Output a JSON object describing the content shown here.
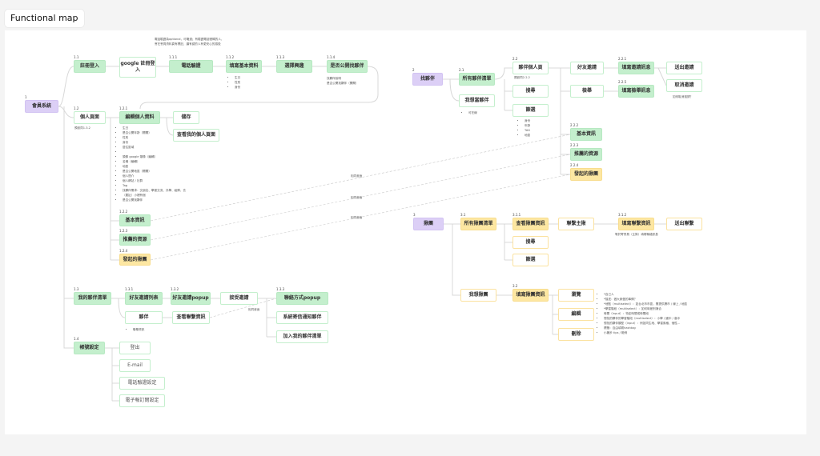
{
  "title": "Functional map",
  "nodes": {
    "n1": {
      "num": "1",
      "label": "會員系統"
    },
    "n11": {
      "num": "1.1",
      "label": "註冊登入"
    },
    "ngoogle": {
      "num": "",
      "label": "google 註冊登入"
    },
    "n111": {
      "num": "1.1.1",
      "label": "電話驗證"
    },
    "n112": {
      "num": "1.1.2",
      "label": "填寫基本資料"
    },
    "n113": {
      "num": "1.1.3",
      "label": "選擇興趣"
    },
    "n114": {
      "num": "1.1.4",
      "label": "是否公開找夥伴"
    },
    "n12": {
      "num": "1.2",
      "label": "個人頁面"
    },
    "n121": {
      "num": "1.2.1",
      "label": "編輯個人資料"
    },
    "nsave": {
      "num": "",
      "label": "儲存"
    },
    "nview": {
      "num": "",
      "label": "查看我的個人頁面"
    },
    "n122": {
      "num": "1.2.2",
      "label": "基本資訊"
    },
    "n123": {
      "num": "1.2.3",
      "label": "推薦的資源"
    },
    "n124": {
      "num": "1.2.4",
      "label": "發起的揪團"
    },
    "n13": {
      "num": "1.3",
      "label": "我的夥伴清單"
    },
    "n131": {
      "num": "1.3.1",
      "label": "好友邀請列表"
    },
    "n132": {
      "num": "1.3.2",
      "label": "好友邀請popup"
    },
    "naccept": {
      "num": "",
      "label": "接受邀請"
    },
    "n133": {
      "num": "1.3.3",
      "label": "聯絡方式popup"
    },
    "nmail": {
      "num": "",
      "label": "系統寄信通知夥伴"
    },
    "nadd": {
      "num": "",
      "label": "加入我的夥伴清單"
    },
    "npartner": {
      "num": "",
      "label": "夥伴"
    },
    "ncontact": {
      "num": "",
      "label": "查看聯繫資訊"
    },
    "n14": {
      "num": "1.4",
      "label": "帳號設定"
    },
    "nlogout": {
      "num": "",
      "label": "登出"
    },
    "nemail": {
      "num": "",
      "label": "E-mail"
    },
    "nphone": {
      "num": "",
      "label": "電話驗證設定"
    },
    "nnews": {
      "num": "",
      "label": "電子報訂閱設定"
    },
    "n2": {
      "num": "2",
      "label": "找夥伴"
    },
    "n21": {
      "num": "2.1",
      "label": "所有夥伴清單"
    },
    "nbe": {
      "num": "",
      "label": "我想當夥伴"
    },
    "n22": {
      "num": "2.2",
      "label": "夥伴個人頁"
    },
    "nsearch2": {
      "num": "",
      "label": "搜尋"
    },
    "nfilter2": {
      "num": "",
      "label": "篩選"
    },
    "nfriend": {
      "num": "",
      "label": "好友邀請"
    },
    "nreport": {
      "num": "",
      "label": "檢舉"
    },
    "n221": {
      "num": "2.2.1",
      "label": "填寫邀請訊息"
    },
    "n225": {
      "num": "2.2.5",
      "label": "填寫檢舉訊息"
    },
    "nsend": {
      "num": "",
      "label": "送出邀請"
    },
    "ncancel": {
      "num": "",
      "label": "取消邀請"
    },
    "n222": {
      "num": "2.2.2",
      "label": "基本資訊"
    },
    "n223": {
      "num": "2.2.3",
      "label": "推薦的資源"
    },
    "n224": {
      "num": "2.2.4",
      "label": "發起的揪團"
    },
    "n3": {
      "num": "3",
      "label": "揪團"
    },
    "n31": {
      "num": "3.1",
      "label": "所有揪團清單"
    },
    "n311": {
      "num": "3.1.1",
      "label": "查看揪團資訊"
    },
    "nsearch3": {
      "num": "",
      "label": "搜尋"
    },
    "nfilter3": {
      "num": "",
      "label": "篩選"
    },
    "nhost": {
      "num": "",
      "label": "聯繫主揪"
    },
    "n312": {
      "num": "3.1.2",
      "label": "填寫聯繫資訊"
    },
    "nsendc": {
      "num": "",
      "label": "送出聯繫"
    },
    "nwant": {
      "num": "",
      "label": "我想揪團"
    },
    "n32": {
      "num": "3.2",
      "label": "填寫揪團資訊"
    },
    "nbrowse": {
      "num": "",
      "label": "瀏覽"
    },
    "nedit": {
      "num": "",
      "label": "編輯"
    },
    "ndelete": {
      "num": "",
      "label": "刪除"
    }
  },
  "notes": {
    "top": [
      "電話驗證為optional，可略過；有驗證電話號碼的人，",
      "會在會員資料頁有標記，讓有認的人有更安心的感覺"
    ],
    "basic": [
      "生日",
      "性別",
      "身份"
    ],
    "public": [
      "找夥伴說明",
      "是否公開找夥伴（開關）"
    ],
    "profile_default": "預設同1.3.2",
    "edit_list": [
      "生日",
      "是否公開年齡（開關）",
      "性別",
      "身份",
      "居住區域",
      "",
      "頭像 google 頭像（編輯）",
      "名稱（編輯）",
      "地區",
      "是否公開地區（開關）",
      "個人簡介",
      "個人網站 / 社群",
      "Tag",
      "找夥伴需求：交朋友、學習交流、共學、組隊、玄",
      "（要扯）小裡有個",
      "是否公開找夥伴"
    ],
    "contact_info": [
      "聯繫資訊"
    ],
    "partner_default": "預設同2.2.2",
    "online": [
      "可在線"
    ],
    "filter_list": [
      "身份",
      "年齡",
      "TAG",
      "地區"
    ],
    "cancel_q": "如何取消邀請？",
    "contact_note": "等於寄會員（主揪）填寫聯絡訊息",
    "group_list": [
      "*自己人",
      "*描述：做大家做的事情？",
      "*地點（multiselect）：如台北市市區，需提供縣市 / 線上 / 地區",
      "*學習階段（multiselect）：如何時差別適合",
      "時間（input）：特定時間或時間段",
      "想找的夥伴的學習階段（multiselect）：小學 / 國中 / 高中",
      "想找的夥伴類型（input）：例如同生地、學習風格、個性...",
      "標籤：自由填寫hashtag",
      "小撇步 tips / 範例"
    ]
  },
  "labels": {
    "same_screen": "相同畫面"
  },
  "colors": {
    "green": "#c4efcd",
    "yellow": "#fde7a2",
    "purple": "#dccff6"
  }
}
